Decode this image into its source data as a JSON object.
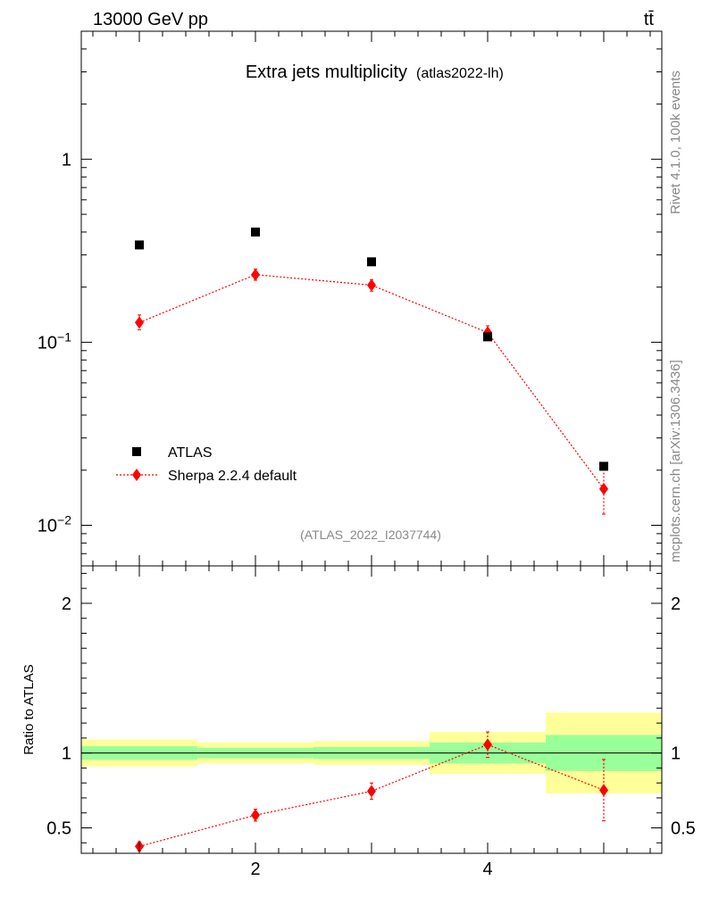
{
  "header": {
    "energy_label": "13000 GeV pp",
    "process_label": "tt̄"
  },
  "side_labels": {
    "rivet": "Rivet 4.1.0,  100k events",
    "mcplots": "mcplots.cern.ch [arXiv:1306.3436]"
  },
  "colors": {
    "data": "#000000",
    "mc": "#ff0000",
    "band_inner": "#99ff99",
    "band_outer": "#ffff99",
    "watermark": "#888888"
  },
  "chart_data": [
    {
      "name": "main",
      "type": "scatter",
      "title": "Extra jets multiplicity",
      "title_suffix": "(atlas2022-lh)",
      "watermark": "(ATLAS_2022_I2037744)",
      "yscale": "log",
      "xlim": [
        0.5,
        5.5
      ],
      "ylim": [
        0.006,
        5.0
      ],
      "ytick_labels": [
        {
          "value": 1,
          "base": "1",
          "exp": ""
        },
        {
          "value": 0.1,
          "base": "10",
          "exp": "−1"
        },
        {
          "value": 0.01,
          "base": "10",
          "exp": "−2"
        }
      ],
      "legend": {
        "position": "bottom-left",
        "entries": [
          {
            "label": "ATLAS",
            "marker": "square",
            "color": "#000000"
          },
          {
            "label": "Sherpa 2.2.4 default",
            "marker": "diamond",
            "color": "#ff0000"
          }
        ]
      },
      "series": [
        {
          "name": "ATLAS",
          "x": [
            1,
            2,
            3,
            4,
            5
          ],
          "y": [
            0.34,
            0.4,
            0.275,
            0.107,
            0.021
          ]
        },
        {
          "name": "Sherpa 2.2.4 default",
          "x": [
            1,
            2,
            3,
            4,
            5
          ],
          "y": [
            0.128,
            0.234,
            0.205,
            0.113,
            0.0158
          ],
          "yerr_low": [
            0.011,
            0.016,
            0.015,
            0.009,
            0.0043
          ],
          "yerr_high": [
            0.013,
            0.017,
            0.015,
            0.01,
            0.0045
          ]
        }
      ]
    },
    {
      "name": "ratio",
      "type": "scatter",
      "ylabel": "Ratio to ATLAS",
      "yscale": "linear",
      "xlim": [
        0.5,
        5.5
      ],
      "ylim": [
        0.33,
        2.25
      ],
      "xtick_labels": [
        "2",
        "4"
      ],
      "xtick_values": [
        2,
        4
      ],
      "ytick_labels": [
        "2",
        "1",
        "0.5"
      ],
      "ytick_values": [
        2,
        1,
        0.5
      ],
      "reference_line": 1.0,
      "bands": [
        {
          "x": [
            0.5,
            1.5
          ],
          "inner": [
            0.955,
            1.045
          ],
          "outer": [
            0.91,
            1.09
          ]
        },
        {
          "x": [
            1.5,
            2.5
          ],
          "inner": [
            0.965,
            1.035
          ],
          "outer": [
            0.93,
            1.07
          ]
        },
        {
          "x": [
            2.5,
            3.5
          ],
          "inner": [
            0.96,
            1.04
          ],
          "outer": [
            0.92,
            1.08
          ]
        },
        {
          "x": [
            3.5,
            4.5
          ],
          "inner": [
            0.93,
            1.07
          ],
          "outer": [
            0.86,
            1.14
          ]
        },
        {
          "x": [
            4.5,
            5.5
          ],
          "inner": [
            0.88,
            1.12
          ],
          "outer": [
            0.73,
            1.27
          ]
        }
      ],
      "series": [
        {
          "name": "Sherpa 2.2.4 default / ATLAS",
          "x": [
            1,
            2,
            3,
            4,
            5
          ],
          "y": [
            0.376,
            0.585,
            0.745,
            1.056,
            0.752
          ],
          "yerr_low": [
            0.03,
            0.04,
            0.055,
            0.085,
            0.205
          ],
          "yerr_high": [
            0.03,
            0.04,
            0.055,
            0.085,
            0.205
          ]
        }
      ]
    }
  ]
}
